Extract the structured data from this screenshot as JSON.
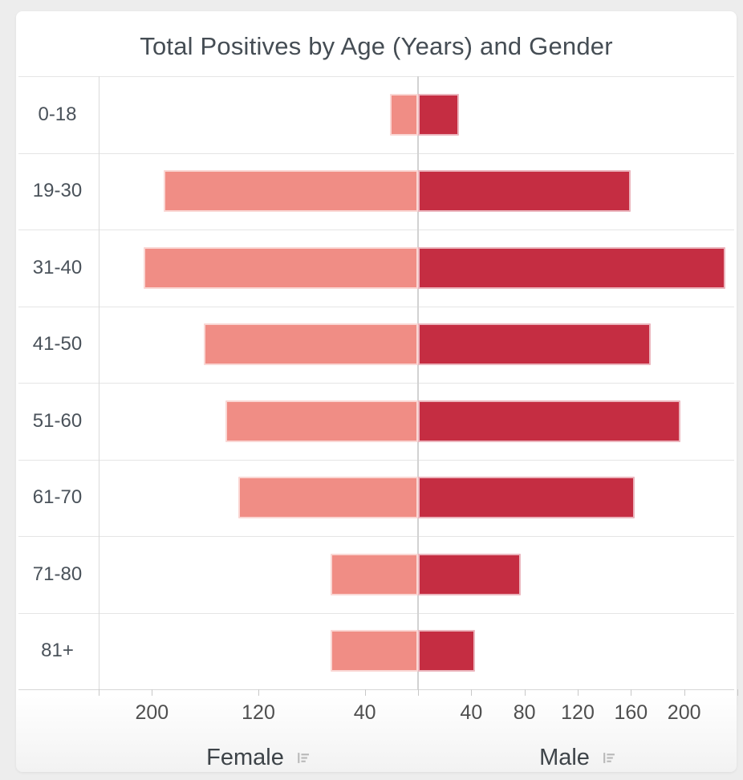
{
  "window": {
    "background_color": "#ededed",
    "card_background": "#ffffff"
  },
  "chart": {
    "title": "Total Positives by Age (Years) and Gender"
  },
  "chart_data": {
    "type": "bar",
    "subtype": "butterfly-pyramid",
    "title": "Total Positives by Age (Years) and Gender",
    "categories": [
      "0-18",
      "19-30",
      "31-40",
      "41-50",
      "51-60",
      "61-70",
      "71-80",
      "81+"
    ],
    "series": [
      {
        "name": "Female",
        "side": "left",
        "color": "#f08d85",
        "values": [
          21,
          191,
          206,
          161,
          145,
          135,
          66,
          66
        ]
      },
      {
        "name": "Male",
        "side": "right",
        "color": "#c52d42",
        "values": [
          31,
          160,
          231,
          175,
          197,
          163,
          77,
          43
        ]
      }
    ],
    "axis": {
      "left_tick_labels": [
        200,
        120,
        40
      ],
      "right_tick_labels": [
        40,
        80,
        120,
        160,
        200
      ],
      "max_each_side": 240,
      "row_gridlines": true
    },
    "legend_position": "bottom"
  },
  "colors": {
    "female_bar": "#f08d85",
    "male_bar": "#c52d42",
    "bar_stroke": "rgba(255,255,255,0.65)",
    "grid_line": "#e5e5e5",
    "axis_line": "#d7d7d7",
    "center_line": "#d2d2d2",
    "title_text": "#454d54",
    "label_text": "#4a525a",
    "tick_text": "#4f4f4f",
    "legend_icon": "#b9b9b9"
  }
}
